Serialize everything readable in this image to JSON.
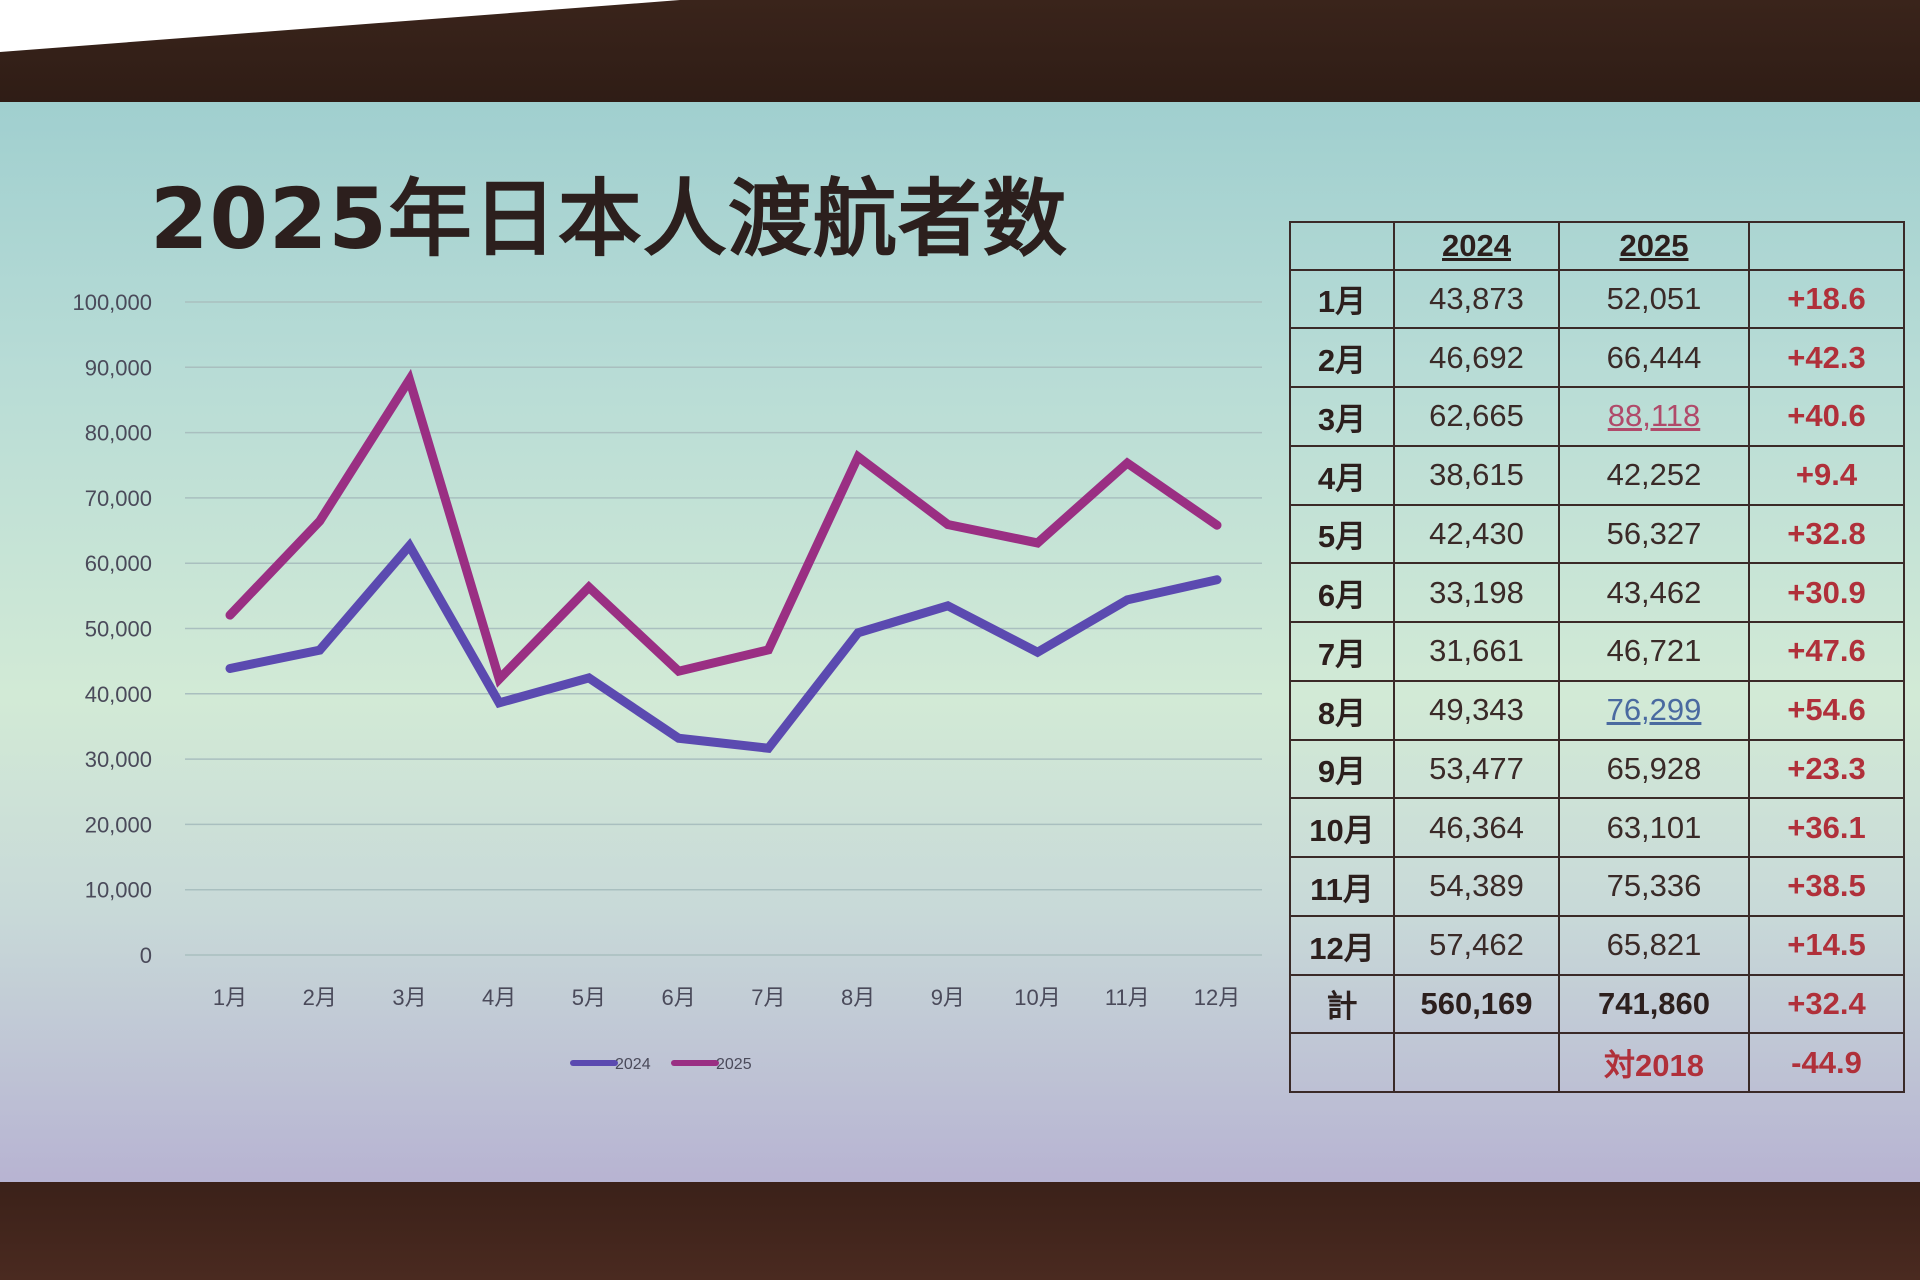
{
  "title": "2025年日本人渡航者数",
  "colors": {
    "series_2024": "#5b4ab0",
    "series_2025": "#9a2f83",
    "pct": "#b0303a"
  },
  "chart_data": {
    "type": "line",
    "categories": [
      "1月",
      "2月",
      "3月",
      "4月",
      "5月",
      "6月",
      "7月",
      "8月",
      "9月",
      "10月",
      "11月",
      "12月"
    ],
    "series": [
      {
        "name": "2024",
        "values": [
          43873,
          46692,
          62665,
          38615,
          42430,
          33198,
          31661,
          49343,
          53477,
          46364,
          54389,
          57462
        ]
      },
      {
        "name": "2025",
        "values": [
          52051,
          66444,
          88118,
          42252,
          56327,
          43462,
          46721,
          76299,
          65928,
          63101,
          75336,
          65821
        ]
      }
    ],
    "ylim": [
      0,
      100000
    ],
    "yticks": [
      "0",
      "10,000",
      "20,000",
      "30,000",
      "40,000",
      "50,000",
      "60,000",
      "70,000",
      "80,000",
      "90,000",
      "100,000"
    ],
    "grid": true,
    "legend": "bottom"
  },
  "table": {
    "header": [
      "",
      "2024",
      "2025",
      ""
    ],
    "rows": [
      {
        "month": "1月",
        "v2024": "43,873",
        "v2025": "52,051",
        "pct": "+18.6"
      },
      {
        "month": "2月",
        "v2024": "46,692",
        "v2025": "66,444",
        "pct": "+42.3"
      },
      {
        "month": "3月",
        "v2024": "62,665",
        "v2025": "88,118",
        "pct": "+40.6"
      },
      {
        "month": "4月",
        "v2024": "38,615",
        "v2025": "42,252",
        "pct": "+9.4"
      },
      {
        "month": "5月",
        "v2024": "42,430",
        "v2025": "56,327",
        "pct": "+32.8"
      },
      {
        "month": "6月",
        "v2024": "33,198",
        "v2025": "43,462",
        "pct": "+30.9"
      },
      {
        "month": "7月",
        "v2024": "31,661",
        "v2025": "46,721",
        "pct": "+47.6"
      },
      {
        "month": "8月",
        "v2024": "49,343",
        "v2025": "76,299",
        "pct": "+54.6"
      },
      {
        "month": "9月",
        "v2024": "53,477",
        "v2025": "65,928",
        "pct": "+23.3"
      },
      {
        "month": "10月",
        "v2024": "46,364",
        "v2025": "63,101",
        "pct": "+36.1"
      },
      {
        "month": "11月",
        "v2024": "54,389",
        "v2025": "75,336",
        "pct": "+38.5"
      },
      {
        "month": "12月",
        "v2024": "57,462",
        "v2025": "65,821",
        "pct": "+14.5"
      }
    ],
    "total": {
      "label": "計",
      "v2024": "560,169",
      "v2025": "741,860",
      "pct": "+32.4"
    },
    "vs2018": {
      "label": "対2018",
      "pct": "-44.9"
    }
  }
}
